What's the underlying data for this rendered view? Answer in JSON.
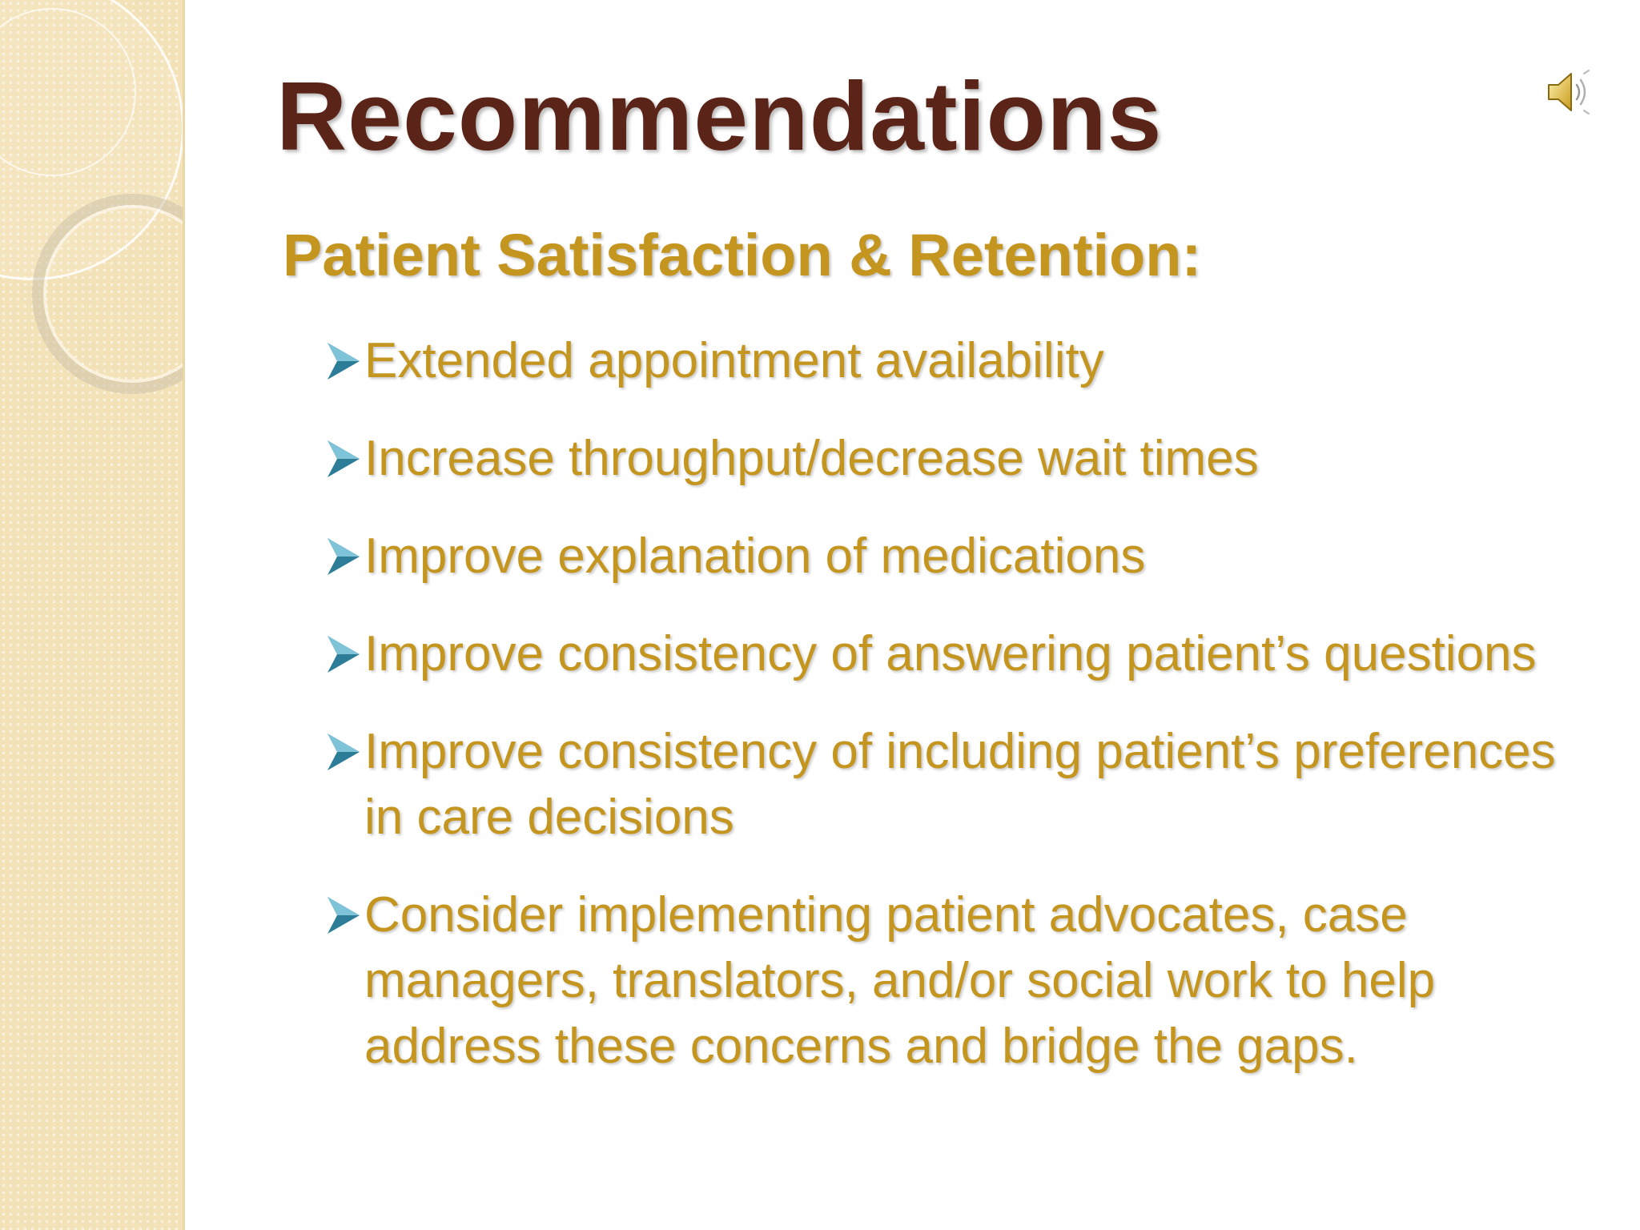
{
  "slide": {
    "title": "Recommendations",
    "subtitle": "Patient Satisfaction & Retention:",
    "bullets": [
      {
        "text": "Extended appointment availability"
      },
      {
        "text": "Increase throughput/decrease wait times"
      },
      {
        "text": "Improve explanation of medications"
      },
      {
        "text": "Improve consistency of answering patient’s questions"
      },
      {
        "text": "Improve consistency of including patient’s preferences in care decisions"
      },
      {
        "text": "Consider implementing patient advocates, case managers, translators, and/or social work to help address these concerns and bridge the gaps."
      }
    ]
  },
  "icons": {
    "bullet": "arrow-bullet-icon",
    "audio": "speaker-icon"
  },
  "colors": {
    "title": "#5b2418",
    "body": "#c5961f",
    "bullet_arrow": "#2e7d98",
    "sidebar": "#f3e2b7"
  }
}
